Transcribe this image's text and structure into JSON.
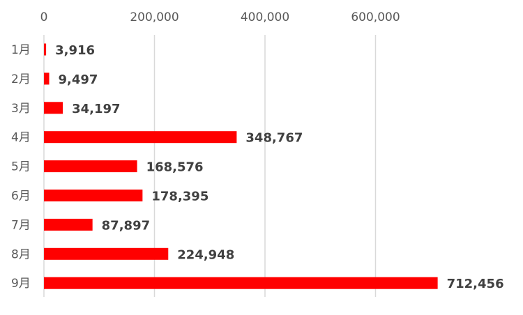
{
  "chart_data": {
    "type": "bar",
    "orientation": "horizontal",
    "categories": [
      "1月",
      "2月",
      "3月",
      "4月",
      "5月",
      "6月",
      "7月",
      "8月",
      "9月"
    ],
    "values": [
      3916,
      9497,
      34197,
      348767,
      168576,
      178395,
      87897,
      224948,
      712456
    ],
    "value_labels": [
      "3,916",
      "9,497",
      "34,197",
      "348,767",
      "168,576",
      "178,395",
      "87,897",
      "224,948",
      "712,456"
    ],
    "x_ticks": [
      0,
      200000,
      400000,
      600000
    ],
    "x_tick_labels": [
      "0",
      "200,000",
      "400,000",
      "600,000"
    ],
    "xlim": [
      0,
      800000
    ],
    "axis_position": "top",
    "grid": true,
    "bar_color": "#ff0000",
    "title": "",
    "xlabel": "",
    "ylabel": ""
  }
}
